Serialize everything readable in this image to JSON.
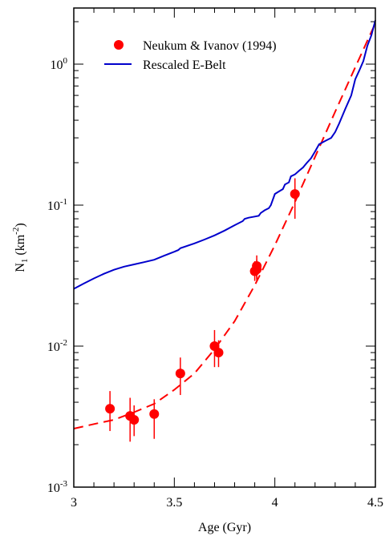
{
  "chart_data": {
    "type": "scatter",
    "title": "",
    "xlabel": "Age (Gyr)",
    "ylabel": {
      "base": "N",
      "sub": "1",
      "unit_open": " (km",
      "unit_sup": "-2",
      "unit_close": ")"
    },
    "xlim": [
      3.0,
      4.5
    ],
    "ylim": [
      0.001,
      2.5
    ],
    "yscale": "log",
    "x_ticks": [
      {
        "value": 3.0,
        "label": "3"
      },
      {
        "value": 3.5,
        "label": "3.5"
      },
      {
        "value": 4.0,
        "label": "4"
      },
      {
        "value": 4.5,
        "label": "4.5"
      }
    ],
    "y_ticks": [
      {
        "value": 0.001,
        "base": "10",
        "exp": "-3"
      },
      {
        "value": 0.01,
        "base": "10",
        "exp": "-2"
      },
      {
        "value": 0.1,
        "base": "10",
        "exp": "-1"
      },
      {
        "value": 1.0,
        "base": "10",
        "exp": "0"
      }
    ],
    "legend_position": "top-left",
    "series": [
      {
        "name": "Neukum & Ivanov (1994)",
        "kind": "points",
        "color": "#ff0000",
        "points": [
          {
            "x": 3.18,
            "y": 0.0036,
            "ylo": 0.0025,
            "yhi": 0.0048
          },
          {
            "x": 3.28,
            "y": 0.0032,
            "ylo": 0.0021,
            "yhi": 0.0043
          },
          {
            "x": 3.3,
            "y": 0.003,
            "ylo": 0.0023,
            "yhi": 0.0038
          },
          {
            "x": 3.4,
            "y": 0.0033,
            "ylo": 0.0022,
            "yhi": 0.0042
          },
          {
            "x": 3.53,
            "y": 0.0064,
            "ylo": 0.0045,
            "yhi": 0.0083
          },
          {
            "x": 3.7,
            "y": 0.01,
            "ylo": 0.0071,
            "yhi": 0.013
          },
          {
            "x": 3.72,
            "y": 0.009,
            "ylo": 0.0071,
            "yhi": 0.011
          },
          {
            "x": 3.9,
            "y": 0.034,
            "ylo": 0.029,
            "yhi": 0.04
          },
          {
            "x": 3.91,
            "y": 0.037,
            "ylo": 0.03,
            "yhi": 0.044
          },
          {
            "x": 3.91,
            "y": 0.035,
            "ylo": 0.029,
            "yhi": 0.041
          },
          {
            "x": 4.1,
            "y": 0.12,
            "ylo": 0.08,
            "yhi": 0.155
          }
        ]
      },
      {
        "name": "",
        "kind": "dashed-line",
        "color": "#ff0000",
        "x": [
          3.0,
          3.1,
          3.2,
          3.3,
          3.4,
          3.5,
          3.6,
          3.7,
          3.8,
          3.9,
          4.0,
          4.1,
          4.2,
          4.3,
          4.4,
          4.5
        ],
        "y": [
          0.0026,
          0.0028,
          0.003,
          0.0034,
          0.0039,
          0.0049,
          0.0064,
          0.0095,
          0.015,
          0.027,
          0.052,
          0.105,
          0.22,
          0.46,
          0.95,
          1.95
        ]
      },
      {
        "name": "Rescaled E-Belt",
        "kind": "line",
        "color": "#0000cc",
        "x": [
          3.0,
          3.05,
          3.1,
          3.15,
          3.2,
          3.25,
          3.3,
          3.35,
          3.4,
          3.45,
          3.5,
          3.52,
          3.53,
          3.6,
          3.65,
          3.7,
          3.75,
          3.8,
          3.84,
          3.85,
          3.87,
          3.9,
          3.92,
          3.93,
          3.95,
          3.97,
          3.98,
          4.0,
          4.02,
          4.04,
          4.05,
          4.07,
          4.08,
          4.1,
          4.12,
          4.14,
          4.16,
          4.18,
          4.2,
          4.22,
          4.25,
          4.28,
          4.3,
          4.32,
          4.35,
          4.38,
          4.4,
          4.42,
          4.44,
          4.46,
          4.48,
          4.5
        ],
        "y": [
          0.0255,
          0.0278,
          0.0302,
          0.0326,
          0.0348,
          0.0366,
          0.038,
          0.0394,
          0.041,
          0.0438,
          0.0467,
          0.048,
          0.0495,
          0.0535,
          0.057,
          0.061,
          0.066,
          0.072,
          0.077,
          0.08,
          0.0815,
          0.083,
          0.084,
          0.088,
          0.092,
          0.095,
          0.1,
          0.12,
          0.125,
          0.13,
          0.14,
          0.145,
          0.16,
          0.165,
          0.175,
          0.185,
          0.2,
          0.215,
          0.24,
          0.27,
          0.285,
          0.3,
          0.33,
          0.38,
          0.48,
          0.6,
          0.78,
          0.9,
          1.05,
          1.35,
          1.6,
          2.05
        ]
      }
    ]
  }
}
